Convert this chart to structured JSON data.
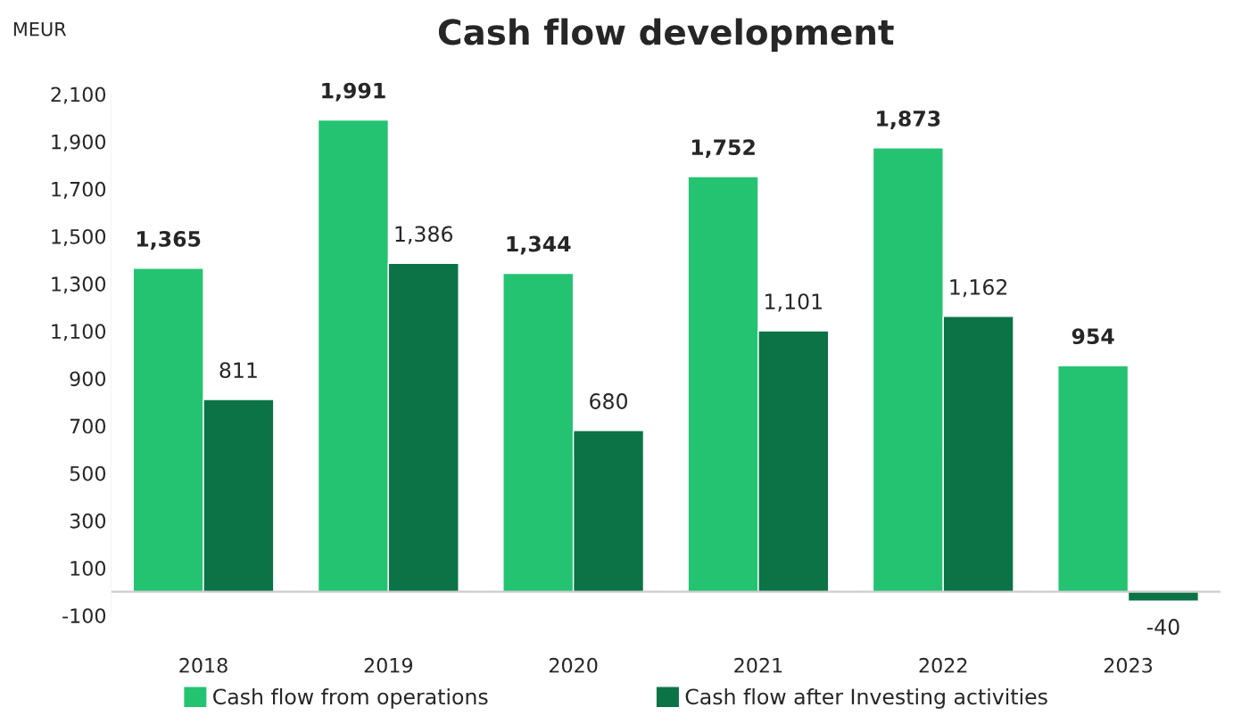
{
  "chart_data": {
    "type": "bar",
    "title": "Cash flow development",
    "ylabel": "MEUR",
    "categories": [
      "2018",
      "2019",
      "2020",
      "2021",
      "2022",
      "2023"
    ],
    "series": [
      {
        "name": "Cash flow from operations",
        "color": "#24c372",
        "values": [
          1365,
          1991,
          1344,
          1752,
          1873,
          954
        ],
        "value_labels": [
          "1,365",
          "1,991",
          "1,344",
          "1,752",
          "1,873",
          "954"
        ]
      },
      {
        "name": "Cash flow after Investing activities",
        "color": "#0b7346",
        "values": [
          811,
          1386,
          680,
          1101,
          1162,
          -40
        ],
        "value_labels": [
          "811",
          "1,386",
          "680",
          "1,101",
          "1,162",
          "-40"
        ]
      }
    ],
    "ylim": [
      -100,
      2100
    ],
    "yticks": [
      -100,
      100,
      300,
      500,
      700,
      900,
      {
        "value": 1100,
        "label": "1,100"
      },
      {
        "value": 1300,
        "label": "1,300"
      },
      {
        "value": 1500,
        "label": "1,500"
      },
      {
        "value": 1700,
        "label": "1,700"
      },
      {
        "value": 1900,
        "label": "1,900"
      },
      {
        "value": 2100,
        "label": "2,100"
      }
    ],
    "grid": false,
    "legend": "bottom"
  }
}
